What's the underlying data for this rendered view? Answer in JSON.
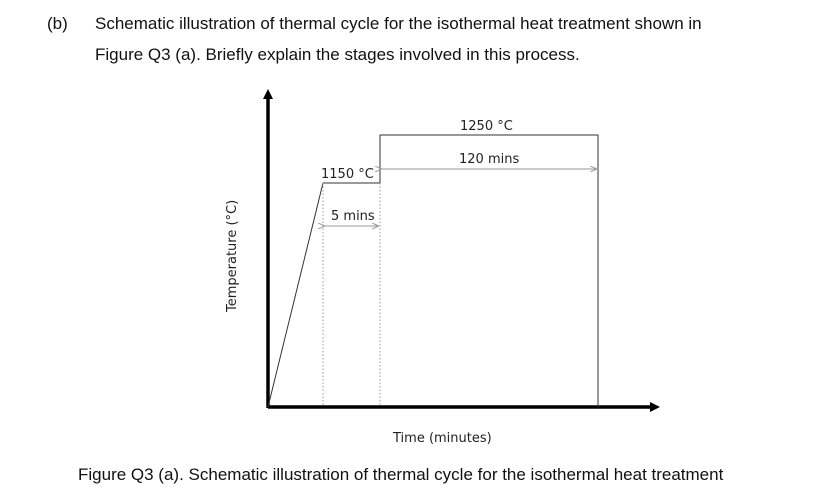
{
  "question": {
    "label": "(b)",
    "line1": "Schematic illustration of thermal cycle for the isothermal heat treatment shown in",
    "line2": "Figure Q3 (a). Briefly explain the stages involved in this process."
  },
  "figure": {
    "y_axis_label": "Temperature (°C)",
    "x_axis_label": "Time (minutes)",
    "stage1_temp": "1150 °C",
    "stage1_hold": "5 mins",
    "stage2_temp": "1250 °C",
    "stage2_hold": "120 mins"
  },
  "caption": "Figure Q3 (a). Schematic illustration of thermal cycle for the isothermal heat treatment"
}
